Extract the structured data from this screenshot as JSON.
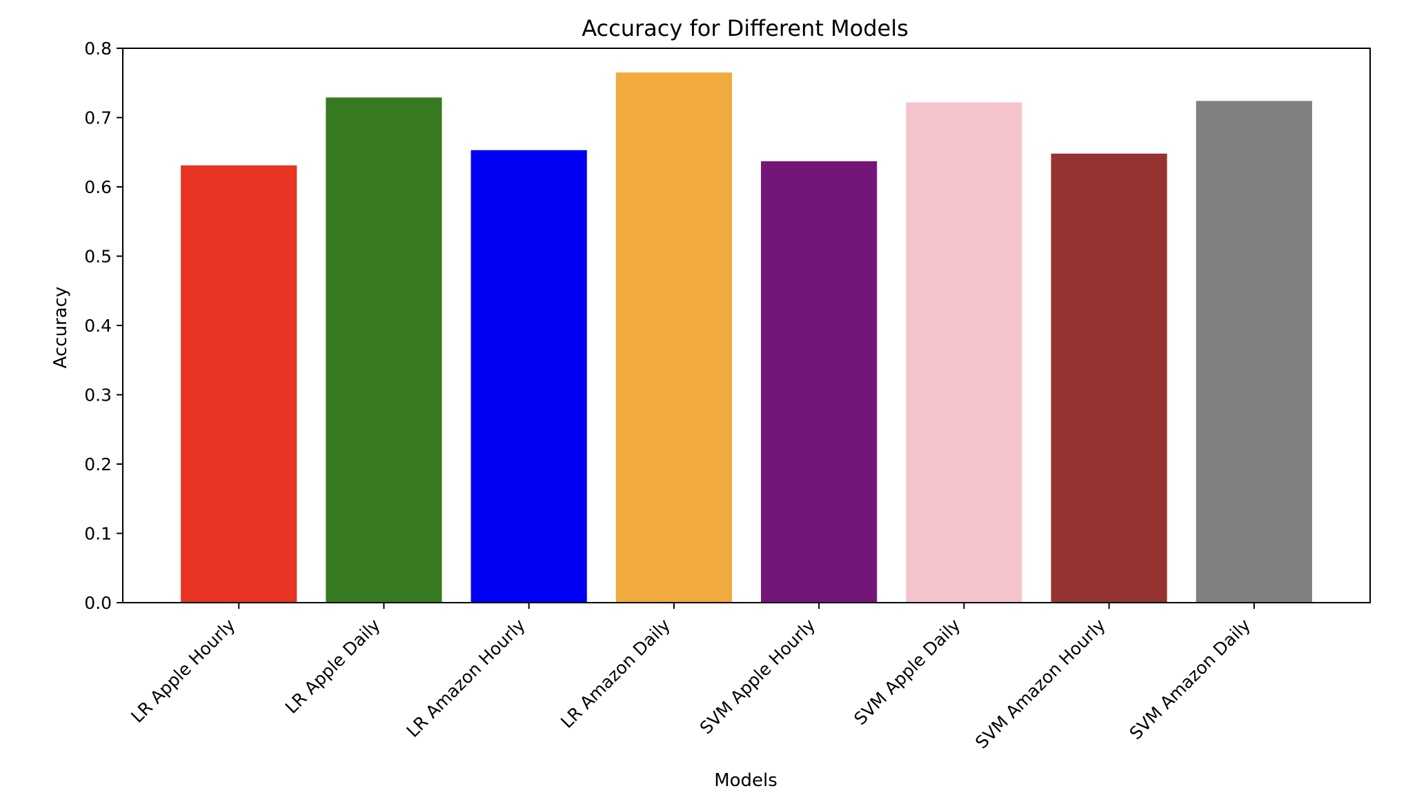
{
  "chart_data": {
    "type": "bar",
    "title": "Accuracy for Different Models",
    "xlabel": "Models",
    "ylabel": "Accuracy",
    "ylim": [
      0,
      0.8
    ],
    "yticks": [
      "0.0",
      "0.1",
      "0.2",
      "0.3",
      "0.4",
      "0.5",
      "0.6",
      "0.7",
      "0.8"
    ],
    "grid": false,
    "legend": "none",
    "categories": [
      "LR Apple Hourly",
      "LR Apple Daily",
      "LR Amazon Hourly",
      "LR Amazon Daily",
      "SVM Apple Hourly",
      "SVM Apple Daily",
      "SVM Amazon Hourly",
      "SVM Amazon Daily"
    ],
    "values": [
      0.631,
      0.729,
      0.653,
      0.765,
      0.637,
      0.722,
      0.648,
      0.724
    ],
    "colors": [
      "#e93323",
      "#377a22",
      "#0000f5",
      "#f0aa3d",
      "#741578",
      "#f5c3cc",
      "#953430",
      "#808080"
    ]
  }
}
